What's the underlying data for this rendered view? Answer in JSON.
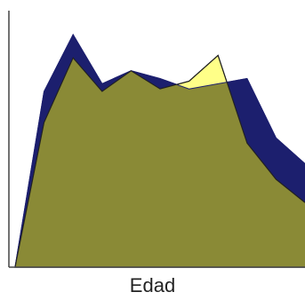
{
  "chart_data": {
    "type": "area",
    "xlabel": "Edad",
    "ylabel": "",
    "title": "",
    "x": [
      0,
      1,
      2,
      3,
      4,
      5,
      6,
      7,
      8,
      9,
      10
    ],
    "ylim": [
      0,
      100
    ],
    "grid": false,
    "legend": "none",
    "series": [
      {
        "values": [
          0,
          68,
          90,
          71,
          76,
          73,
          69,
          71,
          73,
          50,
          40
        ],
        "color": "#1c1f6e",
        "fill": "#1c1f6e"
      },
      {
        "values": [
          0,
          56,
          81,
          68,
          76,
          69,
          72,
          82,
          48,
          34,
          25
        ],
        "color": "#1a1a1a",
        "fill": "#ffff88"
      }
    ],
    "overlap_color": "#8a8a36"
  }
}
